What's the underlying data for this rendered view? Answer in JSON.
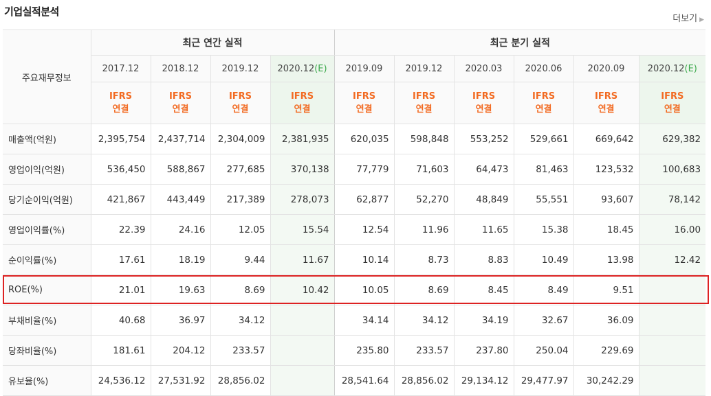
{
  "title": "기업실적분석",
  "more_label": "더보기",
  "header": {
    "row_label": "주요재무정보",
    "annual_group": "최근 연간 실적",
    "quarter_group": "최근 분기 실적",
    "annual_periods": [
      "2017.12",
      "2018.12",
      "2019.12",
      "2020.12"
    ],
    "annual_estimate_suffix": "(E)",
    "quarter_periods": [
      "2019.09",
      "2019.12",
      "2020.03",
      "2020.06",
      "2020.09",
      "2020.12"
    ],
    "quarter_estimate_suffix": "(E)",
    "basis_top": "IFRS",
    "basis_bottom": "연결"
  },
  "rows": [
    {
      "label": "매출액(억원)",
      "values": [
        "2,395,754",
        "2,437,714",
        "2,304,009",
        "2,381,935",
        "620,035",
        "598,848",
        "553,252",
        "529,661",
        "669,642",
        "629,382"
      ]
    },
    {
      "label": "영업이익(억원)",
      "values": [
        "536,450",
        "588,867",
        "277,685",
        "370,138",
        "77,779",
        "71,603",
        "64,473",
        "81,463",
        "123,532",
        "100,683"
      ]
    },
    {
      "label": "당기순이익(억원)",
      "values": [
        "421,867",
        "443,449",
        "217,389",
        "278,073",
        "62,877",
        "52,270",
        "48,849",
        "55,551",
        "93,607",
        "78,142"
      ]
    },
    {
      "label": "영업이익률(%)",
      "values": [
        "22.39",
        "24.16",
        "12.05",
        "15.54",
        "12.54",
        "11.96",
        "11.65",
        "15.38",
        "18.45",
        "16.00"
      ]
    },
    {
      "label": "순이익률(%)",
      "values": [
        "17.61",
        "18.19",
        "9.44",
        "11.67",
        "10.14",
        "8.73",
        "8.83",
        "10.49",
        "13.98",
        "12.42"
      ]
    },
    {
      "label": "ROE(%)",
      "values": [
        "21.01",
        "19.63",
        "8.69",
        "10.42",
        "10.05",
        "8.69",
        "8.45",
        "8.49",
        "9.51",
        ""
      ]
    },
    {
      "label": "부채비율(%)",
      "values": [
        "40.68",
        "36.97",
        "34.12",
        "",
        "34.14",
        "34.12",
        "34.19",
        "32.67",
        "36.09",
        ""
      ]
    },
    {
      "label": "당좌비율(%)",
      "values": [
        "181.61",
        "204.12",
        "233.57",
        "",
        "235.80",
        "233.57",
        "237.80",
        "250.04",
        "229.69",
        ""
      ]
    },
    {
      "label": "유보율(%)",
      "values": [
        "24,536.12",
        "27,531.92",
        "28,856.02",
        "",
        "28,541.64",
        "28,856.02",
        "29,134.12",
        "29,477.97",
        "30,242.29",
        ""
      ]
    }
  ],
  "highlight_row": "ROE(%)",
  "colors": {
    "ifrs": "#f26a21",
    "estimate": "#3aa84a",
    "estimate_bg": "#f3f9f3",
    "highlight": "#dd2222"
  }
}
